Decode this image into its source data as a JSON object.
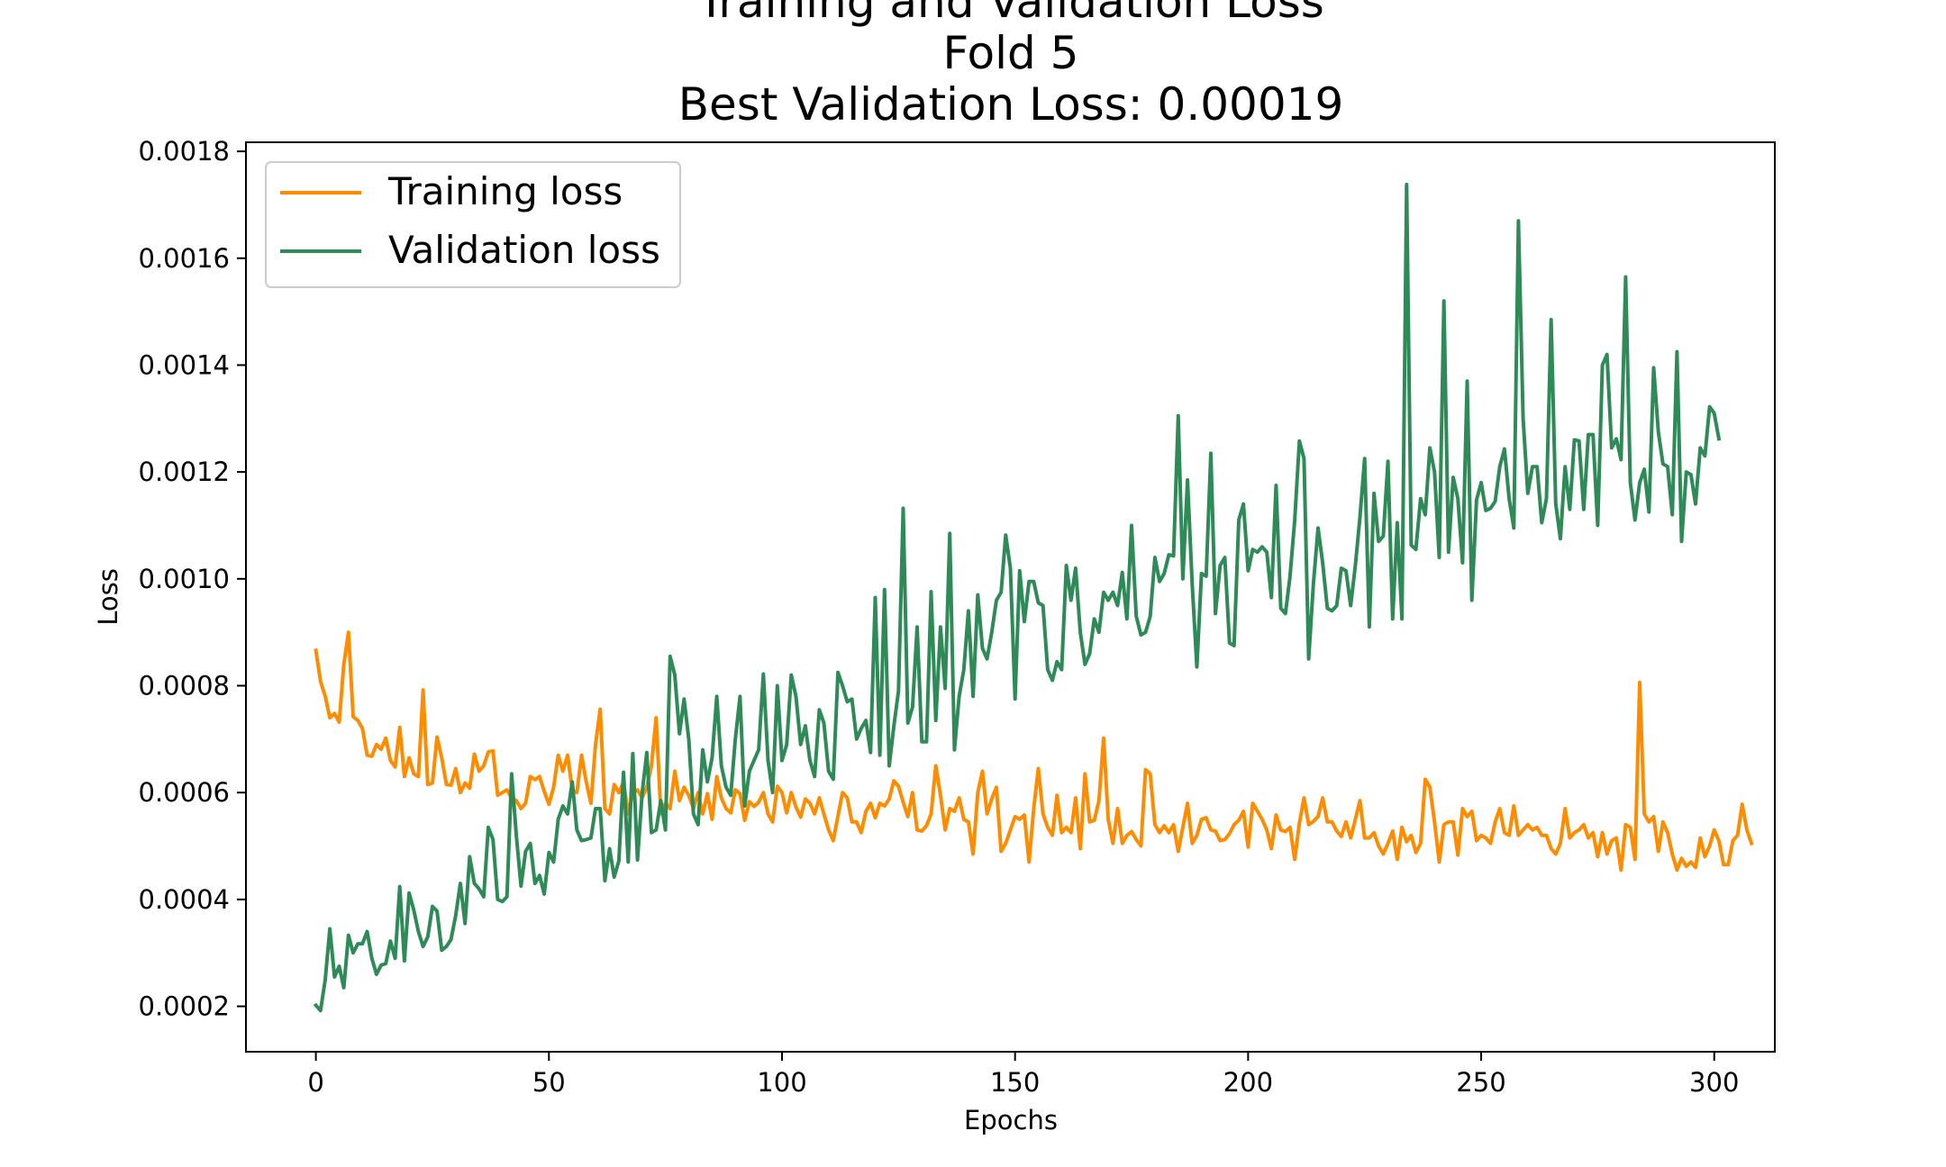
{
  "chart_data": {
    "type": "line",
    "title_lines": [
      "Training and Validation Loss",
      "Fold 5",
      "Best Validation Loss: 0.00019"
    ],
    "xlabel": "Epochs",
    "ylabel": "Loss",
    "xlim": [
      -15,
      313
    ],
    "ylim": [
      0.000115,
      0.001817
    ],
    "x_ticks": [
      0,
      50,
      100,
      150,
      200,
      250,
      300
    ],
    "y_ticks": [
      0.0002,
      0.0004,
      0.0006,
      0.0008,
      0.001,
      0.0012,
      0.0014,
      0.0016,
      0.0018
    ],
    "x_tick_labels": [
      "0",
      "50",
      "100",
      "150",
      "200",
      "250",
      "300"
    ],
    "y_tick_labels": [
      "0.0002",
      "0.0004",
      "0.0006",
      "0.0008",
      "0.0010",
      "0.0012",
      "0.0014",
      "0.0016",
      "0.0018"
    ],
    "legend_position": "top-left",
    "series": [
      {
        "name": "Training loss",
        "color": "#ff8c00",
        "x_start": 0,
        "x_step": 1,
        "values": [
          0.000866,
          0.000808,
          0.00078,
          0.00074,
          0.000748,
          0.000732,
          0.00084,
          0.0009,
          0.000742,
          0.000735,
          0.00072,
          0.00067,
          0.000668,
          0.00069,
          0.000681,
          0.000702,
          0.00066,
          0.000648,
          0.000722,
          0.00063,
          0.000665,
          0.000635,
          0.00063,
          0.000792,
          0.000615,
          0.000618,
          0.000704,
          0.000665,
          0.000615,
          0.000614,
          0.000645,
          0.0006,
          0.000618,
          0.000608,
          0.000672,
          0.00064,
          0.00065,
          0.000676,
          0.000678,
          0.000595,
          0.0006,
          0.000605,
          0.00059,
          0.000585,
          0.00057,
          0.00058,
          0.00063,
          0.000624,
          0.00063,
          0.000602,
          0.000578,
          0.00061,
          0.00067,
          0.00064,
          0.00067,
          0.000605,
          0.0006,
          0.00067,
          0.00062,
          0.00058,
          0.00069,
          0.000756,
          0.00057,
          0.00056,
          0.000615,
          0.0006,
          0.00062,
          0.00056,
          0.0006,
          0.000605,
          0.00059,
          0.00061,
          0.00065,
          0.00074,
          0.00056,
          0.00058,
          0.00057,
          0.00064,
          0.000585,
          0.00061,
          0.000595,
          0.00057,
          0.0006,
          0.00056,
          0.000598,
          0.00055,
          0.00063,
          0.00059,
          0.00057,
          0.000562,
          0.000605,
          0.000598,
          0.000548,
          0.000583,
          0.000574,
          0.000582,
          0.0006,
          0.00056,
          0.000545,
          0.000612,
          0.0006,
          0.000562,
          0.0006,
          0.000573,
          0.000554,
          0.000588,
          0.00058,
          0.00056,
          0.00059,
          0.00056,
          0.00053,
          0.00051,
          0.000556,
          0.0006,
          0.00059,
          0.000545,
          0.000545,
          0.000525,
          0.000565,
          0.00058,
          0.000553,
          0.00058,
          0.000575,
          0.000588,
          0.000622,
          0.000612,
          0.000582,
          0.000555,
          0.0006,
          0.00053,
          0.000528,
          0.000538,
          0.00056,
          0.00065,
          0.000595,
          0.00053,
          0.00057,
          0.000565,
          0.00059,
          0.00055,
          0.000545,
          0.000485,
          0.0006,
          0.00064,
          0.00056,
          0.000588,
          0.00061,
          0.00049,
          0.000505,
          0.00053,
          0.000555,
          0.00055,
          0.000558,
          0.00047,
          0.00057,
          0.000645,
          0.00056,
          0.000535,
          0.00052,
          0.000595,
          0.000525,
          0.000535,
          0.000525,
          0.00059,
          0.000495,
          0.000635,
          0.000545,
          0.000548,
          0.000585,
          0.000702,
          0.00055,
          0.000505,
          0.00057,
          0.000505,
          0.00052,
          0.000527,
          0.000512,
          0.0005,
          0.000643,
          0.000635,
          0.00054,
          0.000525,
          0.000538,
          0.000525,
          0.00054,
          0.00049,
          0.000535,
          0.00058,
          0.000505,
          0.00052,
          0.00055,
          0.000553,
          0.00053,
          0.000528,
          0.00051,
          0.000512,
          0.000523,
          0.00054,
          0.000548,
          0.000565,
          0.000498,
          0.00058,
          0.000565,
          0.00055,
          0.00053,
          0.000495,
          0.000558,
          0.00053,
          0.000527,
          0.000535,
          0.000475,
          0.000543,
          0.00059,
          0.00054,
          0.000546,
          0.000555,
          0.00059,
          0.000545,
          0.000545,
          0.000528,
          0.000518,
          0.000545,
          0.000515,
          0.00055,
          0.000585,
          0.000515,
          0.000515,
          0.000525,
          0.0005,
          0.000485,
          0.000505,
          0.000528,
          0.000475,
          0.000535,
          0.000508,
          0.00052,
          0.000488,
          0.000505,
          0.000625,
          0.00061,
          0.000545,
          0.00047,
          0.00054,
          0.000545,
          0.000545,
          0.000483,
          0.00057,
          0.000555,
          0.000565,
          0.00051,
          0.00052,
          0.000515,
          0.000505,
          0.000545,
          0.00057,
          0.000525,
          0.00052,
          0.000575,
          0.00052,
          0.00053,
          0.00054,
          0.00053,
          0.000535,
          0.00052,
          0.00052,
          0.000495,
          0.000485,
          0.000505,
          0.00057,
          0.000515,
          0.000525,
          0.00053,
          0.00054,
          0.000515,
          0.000525,
          0.00048,
          0.000525,
          0.000485,
          0.00051,
          0.000515,
          0.000455,
          0.00054,
          0.000535,
          0.000475,
          0.000806,
          0.00056,
          0.000545,
          0.000555,
          0.00049,
          0.000545,
          0.000525,
          0.000485,
          0.000455,
          0.000477,
          0.000462,
          0.00047,
          0.00046,
          0.000515,
          0.00048,
          0.0005,
          0.00053,
          0.00051,
          0.000465,
          0.000465,
          0.00051,
          0.00052,
          0.000578,
          0.00053,
          0.000505
        ]
      },
      {
        "name": "Validation loss",
        "color": "#2e8b57",
        "x_start": 0,
        "x_step": 1,
        "values": [
          0.000202,
          0.000192,
          0.00025,
          0.000345,
          0.000255,
          0.000275,
          0.000235,
          0.000333,
          0.0003,
          0.000317,
          0.000317,
          0.00034,
          0.00029,
          0.00026,
          0.000277,
          0.00028,
          0.000322,
          0.00029,
          0.000424,
          0.000285,
          0.000412,
          0.00038,
          0.00034,
          0.000312,
          0.00033,
          0.000387,
          0.000378,
          0.000305,
          0.000312,
          0.000325,
          0.00037,
          0.00043,
          0.000355,
          0.00048,
          0.00043,
          0.00042,
          0.000405,
          0.000535,
          0.000512,
          0.0004,
          0.000396,
          0.000405,
          0.000635,
          0.00052,
          0.000425,
          0.00049,
          0.000505,
          0.00043,
          0.000445,
          0.00041,
          0.000488,
          0.00047,
          0.00055,
          0.000575,
          0.00056,
          0.00062,
          0.00053,
          0.00051,
          0.000512,
          0.000515,
          0.00057,
          0.00057,
          0.000435,
          0.000495,
          0.000442,
          0.000472,
          0.000638,
          0.00047,
          0.000673,
          0.000474,
          0.0006,
          0.000675,
          0.000525,
          0.00053,
          0.000585,
          0.00053,
          0.000855,
          0.00082,
          0.00071,
          0.000775,
          0.0007,
          0.00056,
          0.00054,
          0.00068,
          0.00062,
          0.000665,
          0.00078,
          0.00065,
          0.00061,
          0.000595,
          0.0007,
          0.00078,
          0.000575,
          0.00064,
          0.00066,
          0.00068,
          0.000822,
          0.00066,
          0.0006,
          0.0008,
          0.00066,
          0.00069,
          0.00082,
          0.00078,
          0.00069,
          0.000725,
          0.00066,
          0.00063,
          0.000755,
          0.00073,
          0.00064,
          0.000625,
          0.000825,
          0.0008,
          0.00077,
          0.000775,
          0.0007,
          0.00072,
          0.000735,
          0.000675,
          0.000965,
          0.00067,
          0.00098,
          0.00065,
          0.000725,
          0.00079,
          0.001132,
          0.00073,
          0.00076,
          0.00091,
          0.000695,
          0.000695,
          0.000976,
          0.000735,
          0.00091,
          0.000795,
          0.001085,
          0.00068,
          0.00078,
          0.00083,
          0.00094,
          0.00078,
          0.00097,
          0.00087,
          0.00085,
          0.0009,
          0.00096,
          0.000975,
          0.001082,
          0.00102,
          0.000775,
          0.001015,
          0.00092,
          0.000995,
          0.000995,
          0.000955,
          0.00095,
          0.00083,
          0.00081,
          0.000845,
          0.00083,
          0.001025,
          0.00096,
          0.00102,
          0.0009,
          0.00084,
          0.00086,
          0.000925,
          0.0009,
          0.000975,
          0.00096,
          0.000975,
          0.00095,
          0.001012,
          0.000925,
          0.0011,
          0.00093,
          0.000895,
          0.0009,
          0.00093,
          0.00104,
          0.000995,
          0.00101,
          0.001045,
          0.001043,
          0.001305,
          0.001,
          0.001185,
          0.00099,
          0.000835,
          0.00101,
          0.001005,
          0.001235,
          0.000935,
          0.001025,
          0.00104,
          0.00088,
          0.000875,
          0.00111,
          0.00114,
          0.001015,
          0.001055,
          0.00105,
          0.00106,
          0.00105,
          0.000965,
          0.001175,
          0.000945,
          0.000935,
          0.001005,
          0.00111,
          0.001258,
          0.001225,
          0.00085,
          0.00099,
          0.001095,
          0.00103,
          0.000945,
          0.00094,
          0.00095,
          0.00102,
          0.001015,
          0.00095,
          0.001025,
          0.001115,
          0.001225,
          0.00091,
          0.00116,
          0.00107,
          0.00108,
          0.00122,
          0.000925,
          0.001105,
          0.000925,
          0.001738,
          0.001063,
          0.001055,
          0.00115,
          0.00112,
          0.001245,
          0.0012,
          0.00104,
          0.00152,
          0.00105,
          0.00119,
          0.00115,
          0.00103,
          0.00137,
          0.00096,
          0.001148,
          0.00118,
          0.001128,
          0.001132,
          0.001145,
          0.00121,
          0.001243,
          0.00115,
          0.001095,
          0.00167,
          0.0013,
          0.00116,
          0.00121,
          0.00121,
          0.001105,
          0.00115,
          0.001485,
          0.00114,
          0.001075,
          0.00121,
          0.00113,
          0.00126,
          0.001258,
          0.00113,
          0.00127,
          0.00127,
          0.0011,
          0.0014,
          0.00142,
          0.001245,
          0.001262,
          0.001223,
          0.001565,
          0.00118,
          0.00111,
          0.00118,
          0.001205,
          0.001125,
          0.001395,
          0.001275,
          0.001215,
          0.00121,
          0.00112,
          0.001425,
          0.00107,
          0.0012,
          0.001195,
          0.00114,
          0.001245,
          0.00123,
          0.001322,
          0.00131,
          0.001262
        ]
      }
    ]
  }
}
